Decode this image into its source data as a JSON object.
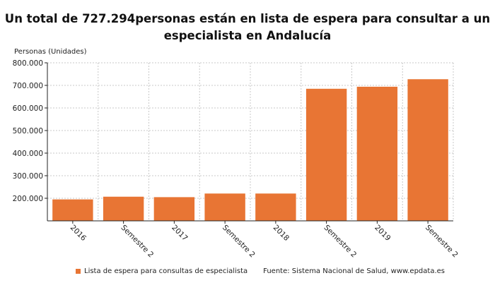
{
  "header": {
    "title": "Un total de 727.294personas están en lista de espera para consultar a un especialista en Andalucía"
  },
  "colors": {
    "bar": "#e87534",
    "grid": "#c8c8c8",
    "axis": "#222222"
  },
  "chart_data": {
    "type": "bar",
    "title": "Un total de 727.294personas están en lista de espera para consultar a un especialista en Andalucía",
    "ylabel": "Personas (Unidades)",
    "xlabel": "",
    "categories": [
      "2016",
      "Semestre 2",
      "2017",
      "Semestre 2",
      "2018",
      "Semestre 2",
      "2019",
      "Semestre 2"
    ],
    "series": [
      {
        "name": "Lista de espera para consultas de especialista",
        "values": [
          195000,
          207000,
          205000,
          221000,
          221000,
          685000,
          694000,
          727294
        ]
      }
    ],
    "ylim": [
      100000,
      800000
    ],
    "yticks": [
      200000,
      300000,
      400000,
      500000,
      600000,
      700000,
      800000
    ],
    "ytick_labels": [
      "200.000",
      "300.000",
      "400.000",
      "500.000",
      "600.000",
      "700.000",
      "800.000"
    ],
    "grid": true,
    "legend_position": "bottom-left"
  },
  "footer": {
    "legend_label": "Lista de espera para consultas de especialista",
    "source": "Fuente: Sistema Nacional de Salud, www.epdata.es"
  }
}
